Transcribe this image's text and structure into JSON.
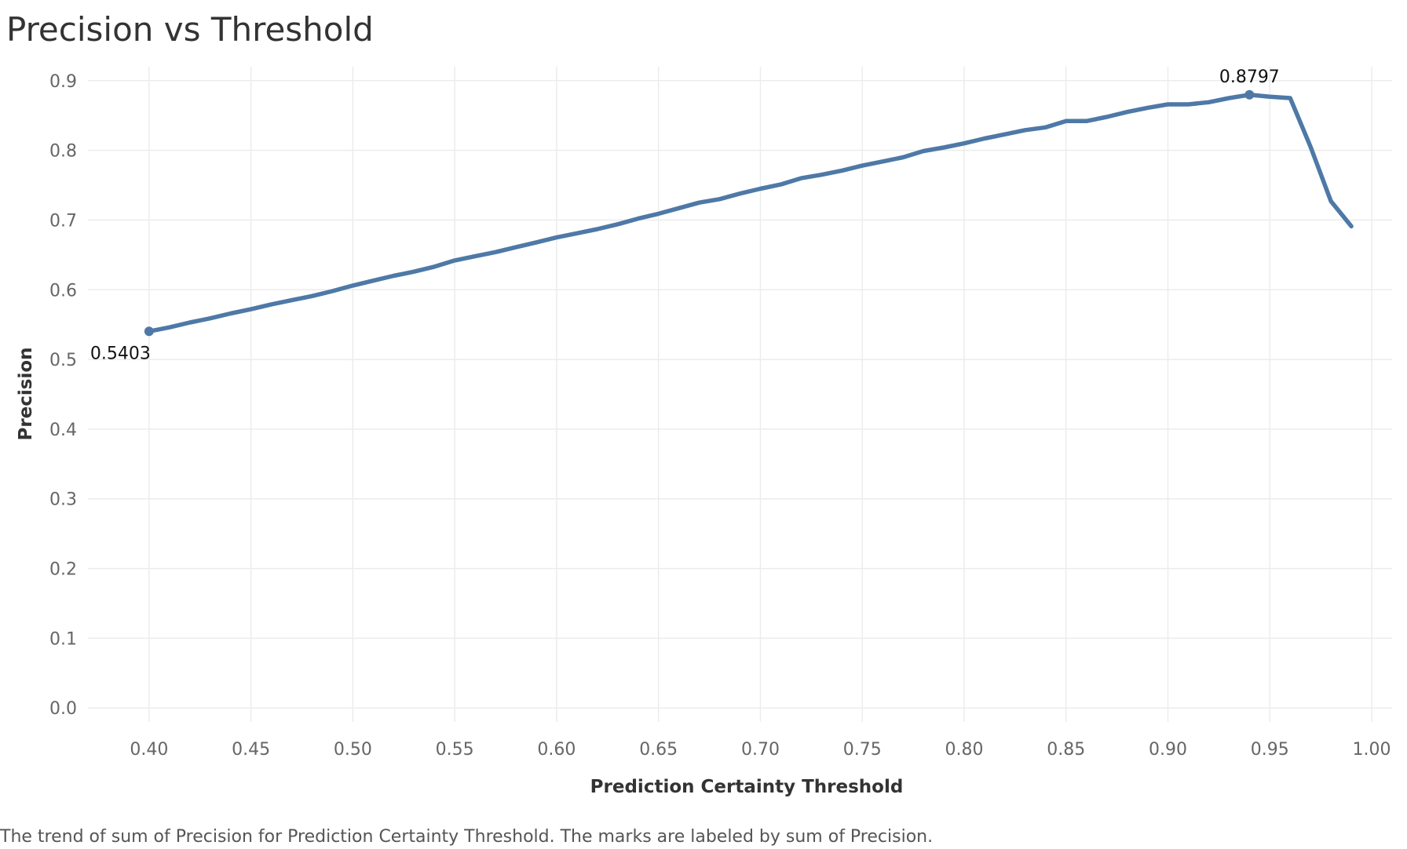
{
  "chart_data": {
    "type": "line",
    "title": "Precision vs Threshold",
    "xlabel": "Prediction Certainty Threshold",
    "ylabel": "Precision",
    "caption": "The trend of sum of Precision for Prediction Certainty Threshold.  The marks are labeled by sum of Precision.",
    "xlim": [
      0.37,
      1.01
    ],
    "ylim": [
      -0.02,
      0.92
    ],
    "x_ticks": [
      "0.40",
      "0.45",
      "0.50",
      "0.55",
      "0.60",
      "0.65",
      "0.70",
      "0.75",
      "0.80",
      "0.85",
      "0.90",
      "0.95",
      "1.00"
    ],
    "y_ticks": [
      "0.0",
      "0.1",
      "0.2",
      "0.3",
      "0.4",
      "0.5",
      "0.6",
      "0.7",
      "0.8",
      "0.9"
    ],
    "grid": true,
    "line_color": "#4e79a7",
    "series": [
      {
        "x": [
          0.4,
          0.41,
          0.42,
          0.43,
          0.44,
          0.45,
          0.46,
          0.47,
          0.48,
          0.49,
          0.5,
          0.51,
          0.52,
          0.53,
          0.54,
          0.55,
          0.56,
          0.57,
          0.58,
          0.59,
          0.6,
          0.61,
          0.62,
          0.63,
          0.64,
          0.65,
          0.66,
          0.67,
          0.68,
          0.69,
          0.7,
          0.71,
          0.72,
          0.73,
          0.74,
          0.75,
          0.76,
          0.77,
          0.78,
          0.79,
          0.8,
          0.81,
          0.82,
          0.83,
          0.84,
          0.85,
          0.86,
          0.87,
          0.88,
          0.89,
          0.9,
          0.91,
          0.92,
          0.93,
          0.94,
          0.95,
          0.96,
          0.97,
          0.98,
          0.99
        ],
        "y": [
          0.5403,
          0.546,
          0.553,
          0.559,
          0.566,
          0.572,
          0.579,
          0.585,
          0.591,
          0.598,
          0.606,
          0.613,
          0.62,
          0.626,
          0.633,
          0.642,
          0.648,
          0.654,
          0.661,
          0.668,
          0.675,
          0.681,
          0.687,
          0.694,
          0.702,
          0.709,
          0.717,
          0.725,
          0.73,
          0.738,
          0.745,
          0.751,
          0.76,
          0.765,
          0.771,
          0.778,
          0.784,
          0.79,
          0.799,
          0.804,
          0.81,
          0.817,
          0.823,
          0.829,
          0.833,
          0.842,
          0.842,
          0.848,
          0.855,
          0.861,
          0.866,
          0.866,
          0.869,
          0.875,
          0.8797,
          0.877,
          0.875,
          0.805,
          0.727,
          0.691
        ]
      }
    ],
    "labels": [
      {
        "x": 0.4,
        "y": 0.5403,
        "text": "0.5403"
      },
      {
        "x": 0.94,
        "y": 0.8797,
        "text": "0.8797"
      }
    ]
  }
}
